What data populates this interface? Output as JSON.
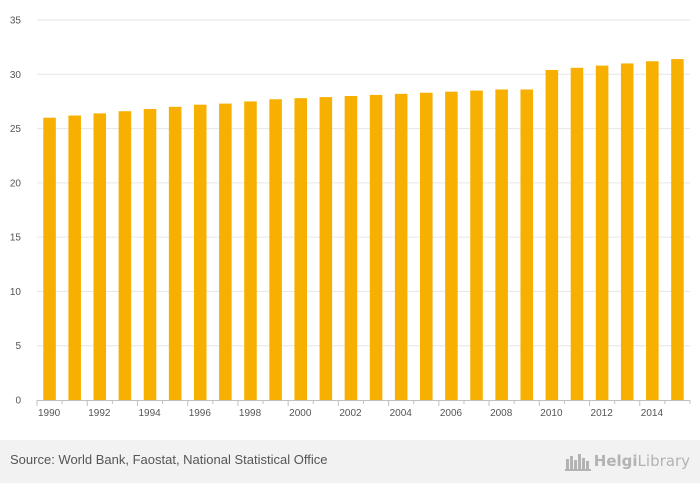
{
  "chart_data": {
    "type": "bar",
    "categories": [
      "1990",
      "1991",
      "1992",
      "1993",
      "1994",
      "1995",
      "1996",
      "1997",
      "1998",
      "1999",
      "2000",
      "2001",
      "2002",
      "2003",
      "2004",
      "2005",
      "2006",
      "2007",
      "2008",
      "2009",
      "2010",
      "2011",
      "2012",
      "2013",
      "2014",
      "2015"
    ],
    "x_tick_labels": [
      "1990",
      "1992",
      "1994",
      "1996",
      "1998",
      "2000",
      "2002",
      "2004",
      "2006",
      "2008",
      "2010",
      "2012",
      "2014"
    ],
    "values": [
      26.0,
      26.2,
      26.4,
      26.6,
      26.8,
      27.0,
      27.2,
      27.3,
      27.5,
      27.7,
      27.8,
      27.9,
      28.0,
      28.1,
      28.2,
      28.3,
      28.4,
      28.5,
      28.6,
      28.6,
      30.4,
      30.6,
      30.8,
      31.0,
      31.2,
      31.4
    ],
    "y_ticks": [
      0,
      5,
      10,
      15,
      20,
      25,
      30,
      35
    ],
    "ylim": [
      0,
      35
    ],
    "bar_color": "#f7b000",
    "grid": true,
    "legend": "none",
    "title": "",
    "xlabel": "",
    "ylabel": ""
  },
  "footer": {
    "source": "Source: World Bank, Faostat, National Statistical Office",
    "brand_part1": "Helgi",
    "brand_part2": "Library",
    "brand_icon": "helgi-library-logo-icon"
  }
}
